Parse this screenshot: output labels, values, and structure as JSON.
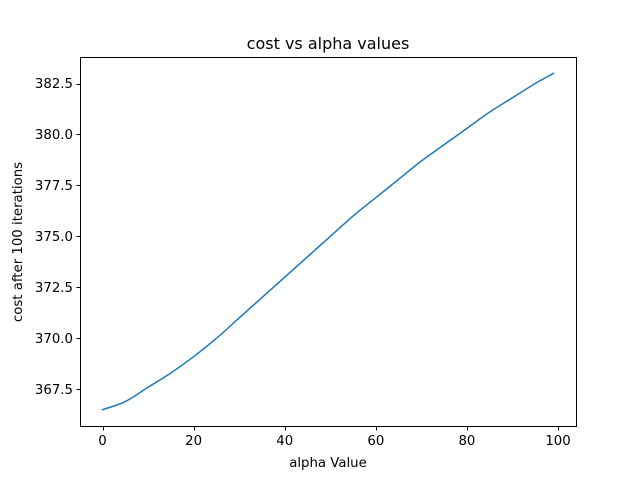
{
  "chart_data": {
    "type": "line",
    "title": "cost vs alpha values",
    "xlabel": "alpha Value",
    "ylabel": "cost after 100 iterations",
    "xlim": [
      -4.95,
      103.95
    ],
    "ylim": [
      365.7,
      383.8
    ],
    "xticks": [
      0,
      20,
      40,
      60,
      80,
      100
    ],
    "xtick_labels": [
      "0",
      "20",
      "40",
      "60",
      "80",
      "100"
    ],
    "yticks": [
      367.5,
      370.0,
      372.5,
      375.0,
      377.5,
      380.0,
      382.5
    ],
    "ytick_labels": [
      "367.5",
      "370.0",
      "372.5",
      "375.0",
      "377.5",
      "380.0",
      "382.5"
    ],
    "grid": false,
    "series": [
      {
        "color": "#1f77b4",
        "x": [
          0,
          5,
          10,
          15,
          20,
          25,
          30,
          35,
          40,
          45,
          50,
          55,
          60,
          65,
          70,
          75,
          80,
          85,
          90,
          95,
          99
        ],
        "y": [
          366.5,
          366.9,
          367.6,
          368.3,
          369.1,
          370.0,
          371.0,
          372.0,
          373.0,
          374.0,
          375.0,
          376.0,
          376.9,
          377.8,
          378.7,
          379.5,
          380.3,
          381.1,
          381.8,
          382.5,
          383.0
        ]
      }
    ]
  }
}
